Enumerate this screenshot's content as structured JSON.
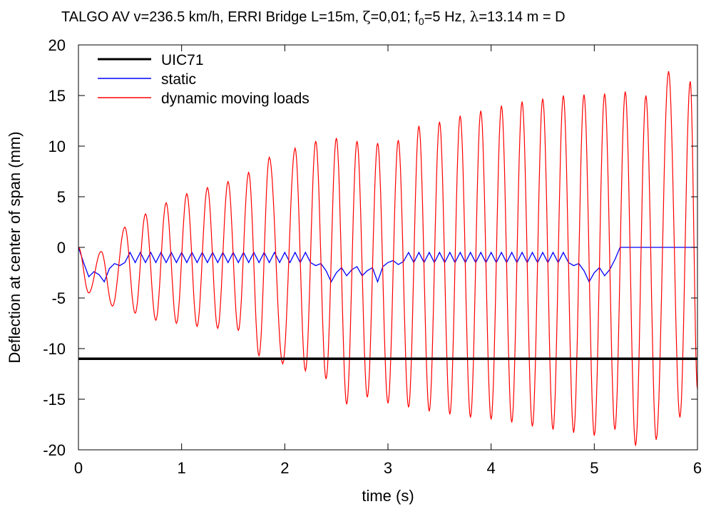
{
  "chart_data": {
    "type": "line",
    "title_parts": {
      "prefix": "TALGO AV v=236.5 km/h, ERRI Bridge L=15m, ",
      "zeta": "ζ",
      "zeta_value": "=0,01; f",
      "sub": "0",
      "mid": "=5 Hz, ",
      "lambda": "λ",
      "suffix": "=13.14 m = D"
    },
    "xlabel": "time (s)",
    "ylabel": "Deflection at center of span (mm)",
    "xlim": [
      0,
      6
    ],
    "ylim": [
      -20,
      20
    ],
    "xticks": [
      "0",
      "1",
      "2",
      "3",
      "4",
      "5",
      "6"
    ],
    "yticks": [
      "20",
      "15",
      "10",
      "5",
      "0",
      "-5",
      "-10",
      "-15",
      "-20"
    ],
    "grid": false,
    "legend_position": "top-left",
    "series": [
      {
        "name": "UIC71",
        "color": "#000000",
        "x": [
          0,
          6
        ],
        "y": [
          -11,
          -11
        ]
      },
      {
        "name": "static",
        "color": "#0000ff",
        "x": [
          0,
          0.05,
          0.1,
          0.15,
          0.2,
          0.25,
          0.3,
          0.35,
          0.4,
          0.45,
          0.5,
          0.55,
          0.6,
          0.65,
          0.7,
          0.75,
          0.8,
          0.85,
          0.9,
          0.95,
          1.0,
          1.05,
          1.1,
          1.15,
          1.2,
          1.25,
          1.3,
          1.35,
          1.4,
          1.45,
          1.5,
          1.55,
          1.6,
          1.65,
          1.7,
          1.75,
          1.8,
          1.85,
          1.9,
          1.95,
          2.0,
          2.05,
          2.1,
          2.15,
          2.2,
          2.25,
          2.3,
          2.35,
          2.4,
          2.45,
          2.5,
          2.55,
          2.6,
          2.65,
          2.7,
          2.75,
          2.8,
          2.85,
          2.9,
          2.95,
          3.0,
          3.05,
          3.1,
          3.15,
          3.2,
          3.25,
          3.3,
          3.35,
          3.4,
          3.45,
          3.5,
          3.55,
          3.6,
          3.65,
          3.7,
          3.75,
          3.8,
          3.85,
          3.9,
          3.95,
          4.0,
          4.05,
          4.1,
          4.15,
          4.2,
          4.25,
          4.3,
          4.35,
          4.4,
          4.45,
          4.5,
          4.55,
          4.6,
          4.65,
          4.7,
          4.75,
          4.8,
          4.85,
          4.9,
          4.95,
          5.0,
          5.05,
          5.1,
          5.15,
          5.2,
          5.25,
          5.3,
          5.35,
          5.4,
          5.45,
          5.5,
          5.55,
          5.6,
          5.65,
          5.7,
          5.75,
          5.8,
          5.85,
          5.9,
          5.95,
          6.0
        ],
        "y": [
          0,
          -1.5,
          -2.9,
          -2.4,
          -2.7,
          -3.4,
          -2.1,
          -1.6,
          -1.8,
          -1.5,
          -0.5,
          -1.5,
          -0.5,
          -1.5,
          -0.5,
          -1.5,
          -0.5,
          -1.5,
          -0.5,
          -1.5,
          -0.5,
          -1.5,
          -0.5,
          -1.5,
          -0.5,
          -1.5,
          -0.5,
          -1.5,
          -0.5,
          -1.5,
          -0.5,
          -1.5,
          -0.5,
          -1.5,
          -0.5,
          -1.5,
          -0.5,
          -1.5,
          -0.5,
          -1.5,
          -0.5,
          -1.5,
          -0.5,
          -1.5,
          -0.5,
          -1.5,
          -1.8,
          -1.6,
          -2.3,
          -3.4,
          -2.5,
          -2.0,
          -2.8,
          -2.2,
          -1.9,
          -2.8,
          -2.3,
          -2.0,
          -3.4,
          -1.9,
          -1.5,
          -1.3,
          -1.7,
          -1.4,
          -0.5,
          -1.5,
          -0.5,
          -1.5,
          -0.5,
          -1.5,
          -0.5,
          -1.5,
          -0.5,
          -1.5,
          -0.5,
          -1.5,
          -0.5,
          -1.5,
          -0.5,
          -1.5,
          -0.5,
          -1.5,
          -0.5,
          -1.5,
          -0.5,
          -1.5,
          -0.5,
          -1.5,
          -0.5,
          -1.5,
          -0.5,
          -1.5,
          -0.5,
          -1.5,
          -0.5,
          -1.5,
          -1.8,
          -1.6,
          -2.3,
          -3.4,
          -2.5,
          -2.0,
          -2.8,
          -2.2,
          -1.2,
          0,
          0,
          0,
          0,
          0,
          0,
          0,
          0,
          0,
          0,
          0,
          0,
          0,
          0,
          0,
          0
        ]
      },
      {
        "name": "dynamic moving loads",
        "color": "#ff0000",
        "peaks": [
          [
            0,
            0
          ],
          [
            0.1,
            -4.5
          ],
          [
            0.22,
            -0.4
          ],
          [
            0.33,
            -5.8
          ],
          [
            0.45,
            2.0
          ],
          [
            0.55,
            -6.5
          ],
          [
            0.65,
            3.3
          ],
          [
            0.75,
            -7.2
          ],
          [
            0.85,
            4.4
          ],
          [
            0.95,
            -7.5
          ],
          [
            1.05,
            5.3
          ],
          [
            1.15,
            -7.8
          ],
          [
            1.25,
            5.9
          ],
          [
            1.35,
            -8.0
          ],
          [
            1.45,
            6.5
          ],
          [
            1.55,
            -8.2
          ],
          [
            1.65,
            7.4
          ],
          [
            1.75,
            -10.7
          ],
          [
            1.85,
            8.9
          ],
          [
            1.98,
            -11.5
          ],
          [
            2.1,
            9.8
          ],
          [
            2.2,
            -12.2
          ],
          [
            2.3,
            10.5
          ],
          [
            2.4,
            -13.0
          ],
          [
            2.5,
            10.8
          ],
          [
            2.6,
            -15.5
          ],
          [
            2.7,
            10.5
          ],
          [
            2.8,
            -14.8
          ],
          [
            2.9,
            10.3
          ],
          [
            3.0,
            -15.4
          ],
          [
            3.1,
            10.6
          ],
          [
            3.2,
            -15.8
          ],
          [
            3.3,
            12.0
          ],
          [
            3.4,
            -16.2
          ],
          [
            3.5,
            12.4
          ],
          [
            3.6,
            -16.5
          ],
          [
            3.7,
            13.0
          ],
          [
            3.8,
            -16.8
          ],
          [
            3.9,
            13.5
          ],
          [
            4.0,
            -17.0
          ],
          [
            4.1,
            14.0
          ],
          [
            4.2,
            -17.3
          ],
          [
            4.3,
            14.4
          ],
          [
            4.4,
            -17.7
          ],
          [
            4.5,
            14.7
          ],
          [
            4.6,
            -18.0
          ],
          [
            4.7,
            15.0
          ],
          [
            4.8,
            -18.3
          ],
          [
            4.9,
            15.1
          ],
          [
            5.0,
            -18.6
          ],
          [
            5.1,
            15.2
          ],
          [
            5.2,
            -18.0
          ],
          [
            5.3,
            15.4
          ],
          [
            5.4,
            -19.6
          ],
          [
            5.5,
            15.0
          ],
          [
            5.6,
            -19.0
          ],
          [
            5.72,
            17.4
          ],
          [
            5.83,
            -16.8
          ],
          [
            5.93,
            16.4
          ],
          [
            6.0,
            -14.0
          ]
        ]
      }
    ]
  }
}
